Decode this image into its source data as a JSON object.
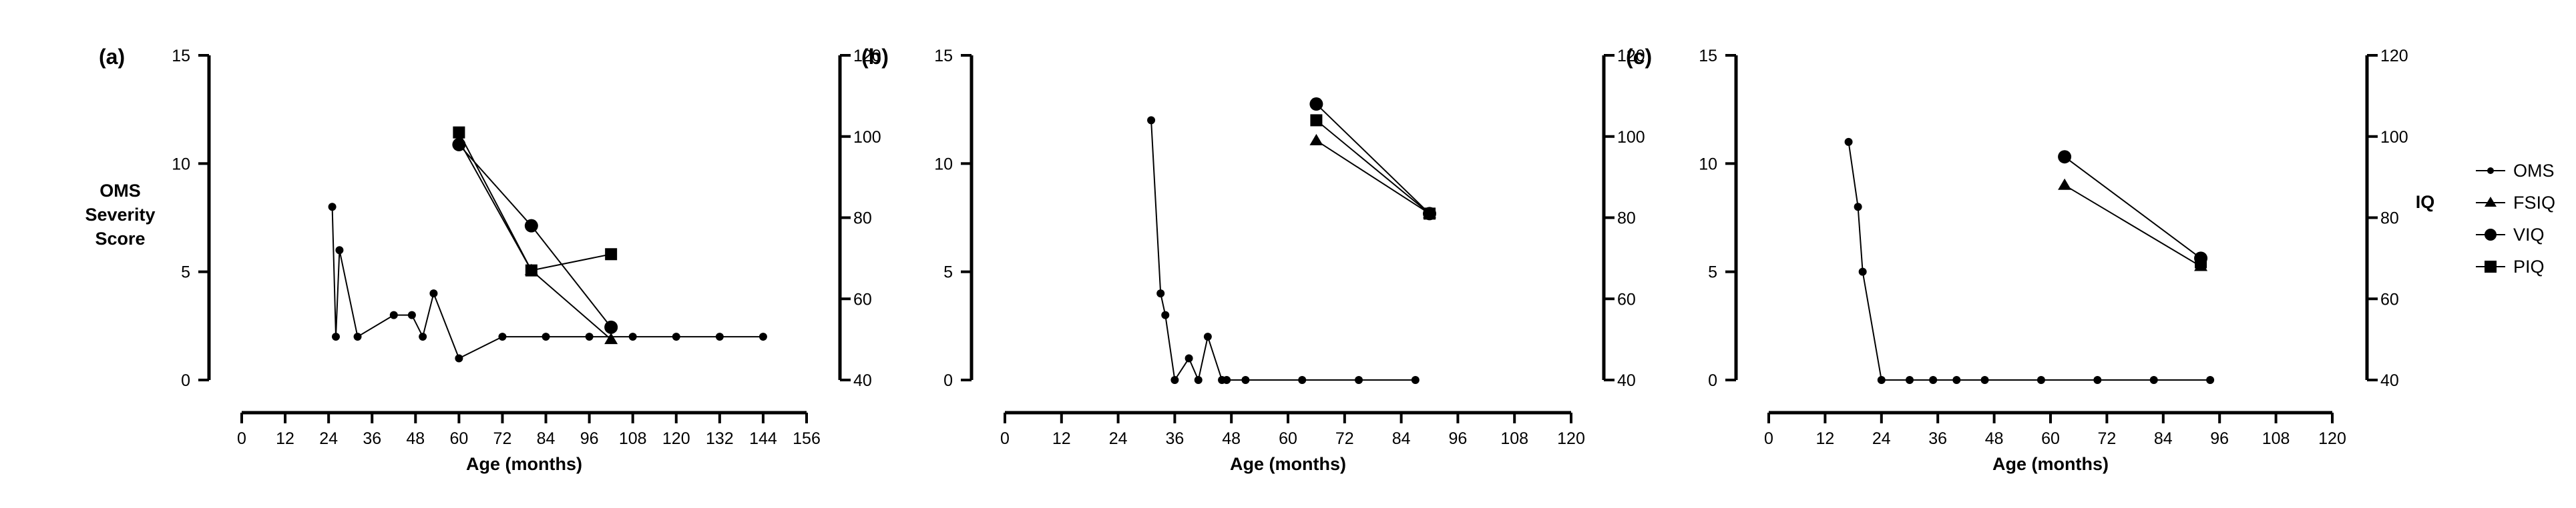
{
  "labels": {
    "y_left": [
      "OMS",
      "Severity",
      "Score"
    ],
    "y_right": "IQ",
    "x_axis": "Age (months)"
  },
  "legend": [
    "OMS",
    "FSIQ",
    "VIQ",
    "PIQ"
  ],
  "chart_data": [
    {
      "panel": "(a)",
      "type": "line",
      "xlabel": "Age (months)",
      "ylabel": "OMS Severity Score",
      "y2label": "IQ",
      "xlim": [
        0,
        156
      ],
      "xticks": [
        0,
        12,
        24,
        36,
        48,
        60,
        72,
        84,
        96,
        108,
        120,
        132,
        144,
        156
      ],
      "ylim": [
        0,
        15
      ],
      "yticks": [
        0,
        5,
        10,
        15
      ],
      "y2lim": [
        40,
        120
      ],
      "y2ticks": [
        40,
        60,
        80,
        100,
        120
      ],
      "series": [
        {
          "name": "OMS",
          "axis": "left",
          "marker": "dot",
          "x": [
            25,
            26,
            27,
            32,
            42,
            47,
            50,
            53,
            60,
            72,
            84,
            96,
            108,
            120,
            132,
            144
          ],
          "y": [
            8,
            2,
            6,
            2,
            3,
            3,
            2,
            4,
            1,
            2,
            2,
            2,
            2,
            2,
            2,
            2
          ]
        },
        {
          "name": "FSIQ",
          "axis": "right",
          "marker": "triangle",
          "x": [
            60,
            80,
            102
          ],
          "y": [
            99,
            67,
            50
          ]
        },
        {
          "name": "VIQ",
          "axis": "right",
          "marker": "circle",
          "x": [
            60,
            80,
            102
          ],
          "y": [
            98,
            78,
            53
          ]
        },
        {
          "name": "PIQ",
          "axis": "right",
          "marker": "square",
          "x": [
            60,
            80,
            102
          ],
          "y": [
            101,
            67,
            71
          ]
        }
      ]
    },
    {
      "panel": "(b)",
      "type": "line",
      "xlabel": "Age (months)",
      "ylabel": "",
      "y2label": "",
      "xlim": [
        0,
        120
      ],
      "xticks": [
        0,
        12,
        24,
        36,
        48,
        60,
        72,
        84,
        96,
        108,
        120
      ],
      "ylim": [
        0,
        15
      ],
      "yticks": [
        0,
        5,
        10,
        15
      ],
      "y2lim": [
        40,
        120
      ],
      "y2ticks": [
        40,
        60,
        80,
        100,
        120
      ],
      "series": [
        {
          "name": "OMS",
          "axis": "left",
          "marker": "dot",
          "x": [
            31,
            33,
            34,
            36,
            39,
            41,
            43,
            46,
            47,
            51,
            63,
            75,
            87
          ],
          "y": [
            12,
            4,
            3,
            0,
            1,
            0,
            2,
            0,
            0,
            0,
            0,
            0,
            0
          ]
        },
        {
          "name": "FSIQ",
          "axis": "right",
          "marker": "triangle",
          "x": [
            66,
            90
          ],
          "y": [
            99,
            81
          ]
        },
        {
          "name": "VIQ",
          "axis": "right",
          "marker": "circle",
          "x": [
            66,
            90
          ],
          "y": [
            108,
            81
          ]
        },
        {
          "name": "PIQ",
          "axis": "right",
          "marker": "square",
          "x": [
            66,
            90
          ],
          "y": [
            104,
            81
          ]
        }
      ]
    },
    {
      "panel": "(c)",
      "type": "line",
      "xlabel": "Age (months)",
      "ylabel": "",
      "y2label": "IQ",
      "xlim": [
        0,
        120
      ],
      "xticks": [
        0,
        12,
        24,
        36,
        48,
        60,
        72,
        84,
        96,
        108,
        120
      ],
      "ylim": [
        0,
        15
      ],
      "yticks": [
        0,
        5,
        10,
        15
      ],
      "y2lim": [
        40,
        120
      ],
      "y2ticks": [
        40,
        60,
        80,
        100,
        120
      ],
      "series": [
        {
          "name": "OMS",
          "axis": "left",
          "marker": "dot",
          "x": [
            17,
            19,
            20,
            24,
            30,
            35,
            40,
            46,
            58,
            70,
            82,
            94
          ],
          "y": [
            11,
            8,
            5,
            0,
            0,
            0,
            0,
            0,
            0,
            0,
            0,
            0
          ]
        },
        {
          "name": "FSIQ",
          "axis": "right",
          "marker": "triangle",
          "x": [
            63,
            92
          ],
          "y": [
            88,
            68
          ]
        },
        {
          "name": "VIQ",
          "axis": "right",
          "marker": "circle",
          "x": [
            63,
            92
          ],
          "y": [
            95,
            70
          ]
        },
        {
          "name": "PIQ",
          "axis": "right",
          "marker": "square",
          "x": [
            92
          ],
          "y": [
            69
          ]
        }
      ]
    }
  ]
}
